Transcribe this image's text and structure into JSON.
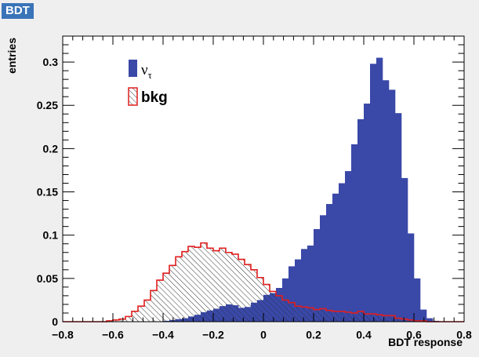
{
  "badge": "BDT",
  "chart_data": {
    "type": "bar",
    "xlabel": "BDT response",
    "ylabel": "entries",
    "xlim": [
      -0.8,
      0.8
    ],
    "ylim": [
      0,
      0.33
    ],
    "x_ticks": [
      -0.8,
      -0.6,
      -0.4,
      -0.2,
      0,
      0.2,
      0.4,
      0.6,
      0.8
    ],
    "x_tick_labels": [
      "−0.8",
      "−0.6",
      "−0.4",
      "−0.2",
      "0",
      "0.2",
      "0.4",
      "0.6",
      "0.8"
    ],
    "y_ticks": [
      0,
      0.05,
      0.1,
      0.15,
      0.2,
      0.25,
      0.3
    ],
    "y_tick_labels": [
      "0",
      "0.05",
      "0.1",
      "0.15",
      "0.2",
      "0.25",
      "0.3"
    ],
    "bin_width": 0.025,
    "bin_edges_start": -0.8,
    "legend": [
      {
        "name": "ν",
        "subscript": "τ",
        "style": "filled",
        "color": "#3a48a8"
      },
      {
        "name": "bkg",
        "style": "hatched",
        "color": "#e01e1e"
      }
    ],
    "legend_position": "top-left",
    "series": [
      {
        "name": "ντ",
        "color": "#3a48a8",
        "values": [
          0,
          0,
          0,
          0,
          0,
          0,
          0,
          0,
          0,
          0,
          0,
          0,
          0,
          0,
          0,
          0,
          0.001,
          0.002,
          0.003,
          0.004,
          0.006,
          0.008,
          0.011,
          0.013,
          0.015,
          0.018,
          0.02,
          0.019,
          0.016,
          0.017,
          0.022,
          0.025,
          0.031,
          0.033,
          0.039,
          0.05,
          0.064,
          0.072,
          0.084,
          0.088,
          0.107,
          0.123,
          0.136,
          0.148,
          0.16,
          0.174,
          0.205,
          0.234,
          0.252,
          0.298,
          0.305,
          0.279,
          0.268,
          0.241,
          0.166,
          0.102,
          0.05,
          0.014,
          0.004,
          0.001,
          0,
          0,
          0,
          0
        ]
      },
      {
        "name": "bkg",
        "color": "#e01e1e",
        "values": [
          0,
          0,
          0,
          0,
          0,
          0,
          0,
          0.001,
          0.002,
          0.003,
          0.006,
          0.012,
          0.018,
          0.025,
          0.036,
          0.048,
          0.056,
          0.065,
          0.075,
          0.081,
          0.087,
          0.086,
          0.091,
          0.085,
          0.082,
          0.085,
          0.08,
          0.078,
          0.072,
          0.066,
          0.06,
          0.051,
          0.043,
          0.035,
          0.03,
          0.025,
          0.022,
          0.018,
          0.017,
          0.016,
          0.014,
          0.015,
          0.013,
          0.012,
          0.012,
          0.011,
          0.01,
          0.012,
          0.009,
          0.009,
          0.008,
          0.007,
          0.007,
          0.004,
          0.003,
          0.002,
          0.001,
          0.001,
          0,
          0,
          0,
          0,
          0,
          0
        ]
      }
    ]
  }
}
